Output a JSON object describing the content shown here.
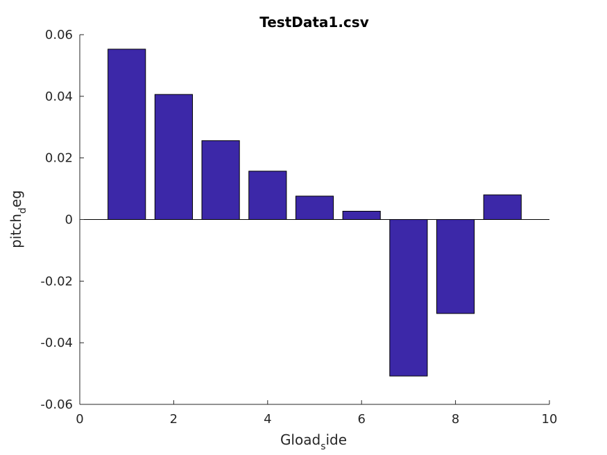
{
  "chart_data": {
    "type": "bar",
    "title": "TestData1.csv",
    "xlabel": {
      "main": "Gload",
      "sub": "s",
      "rest": "ide"
    },
    "ylabel": {
      "main": "pitch",
      "sub": "d",
      "rest": "eg"
    },
    "x": [
      1,
      2,
      3,
      4,
      5,
      6,
      7,
      8,
      9
    ],
    "values": [
      0.0553,
      0.0406,
      0.0256,
      0.0157,
      0.0076,
      0.0027,
      -0.0508,
      -0.0305,
      0.008
    ],
    "xlim": [
      0,
      10
    ],
    "ylim": [
      -0.06,
      0.06
    ],
    "xticks": [
      0,
      2,
      4,
      6,
      8,
      10
    ],
    "xtick_labels": [
      "0",
      "2",
      "4",
      "6",
      "8",
      "10"
    ],
    "yticks": [
      -0.06,
      -0.04,
      -0.02,
      0,
      0.02,
      0.04,
      0.06
    ],
    "ytick_labels": [
      "-0.06",
      "-0.04",
      "-0.02",
      "0",
      "0.02",
      "0.04",
      "0.06"
    ],
    "bar_width": 0.8,
    "bar_color": "#3c28a8",
    "edge_color": "#000000",
    "grid": false
  }
}
